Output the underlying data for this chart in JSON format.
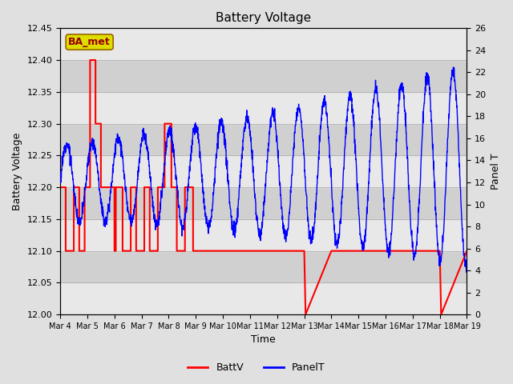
{
  "title": "Battery Voltage",
  "ylabel_left": "Battery Voltage",
  "ylabel_right": "Panel T",
  "xlabel": "Time",
  "ylim_left": [
    12.0,
    12.45
  ],
  "ylim_right": [
    0,
    26
  ],
  "annotation_text": "BA_met",
  "annotation_bg": "#dddd00",
  "annotation_border": "#996600",
  "annotation_text_color": "#990000",
  "xtick_labels": [
    "Mar 4",
    "Mar 5",
    "Mar 6",
    "Mar 7",
    "Mar 8",
    "Mar 9",
    "Mar 10",
    "Mar 11",
    "Mar 12",
    "Mar 13",
    "Mar 14",
    "Mar 15",
    "Mar 16",
    "Mar 17",
    "Mar 18",
    "Mar 19"
  ],
  "batt_color": "#ff0000",
  "panel_color": "#0000ff",
  "band_color": "#d8d8d8",
  "bg_color": "#e0e0e0",
  "legend_fontsize": 9,
  "title_fontsize": 11,
  "batt_x": [
    0,
    0.2,
    0.2,
    0.5,
    0.5,
    0.7,
    0.7,
    0.9,
    0.9,
    1.1,
    1.1,
    1.3,
    1.3,
    1.5,
    1.5,
    2.0,
    2.0,
    2.05,
    2.05,
    2.3,
    2.3,
    2.6,
    2.6,
    2.8,
    2.8,
    3.1,
    3.1,
    3.3,
    3.3,
    3.6,
    3.6,
    3.85,
    3.85,
    4.1,
    4.1,
    4.3,
    4.3,
    4.6,
    4.6,
    4.9,
    4.9,
    5.2,
    5.2,
    9.0,
    9.0,
    9.05,
    9.05,
    10.0,
    10.0,
    10.5,
    10.5,
    11.0,
    11.0,
    14.0,
    14.0,
    14.05,
    14.05,
    15.0
  ],
  "batt_y": [
    12.2,
    12.2,
    12.1,
    12.1,
    12.2,
    12.2,
    12.1,
    12.1,
    12.2,
    12.2,
    12.4,
    12.4,
    12.3,
    12.3,
    12.2,
    12.2,
    12.1,
    12.1,
    12.2,
    12.2,
    12.1,
    12.1,
    12.2,
    12.2,
    12.1,
    12.1,
    12.2,
    12.2,
    12.1,
    12.1,
    12.2,
    12.2,
    12.3,
    12.3,
    12.2,
    12.2,
    12.1,
    12.1,
    12.2,
    12.2,
    12.1,
    12.1,
    12.1,
    12.1,
    12.1,
    12.0,
    12.0,
    12.1,
    12.1,
    12.1,
    12.1,
    12.1,
    12.1,
    12.1,
    12.1,
    12.0,
    12.0,
    12.1
  ]
}
